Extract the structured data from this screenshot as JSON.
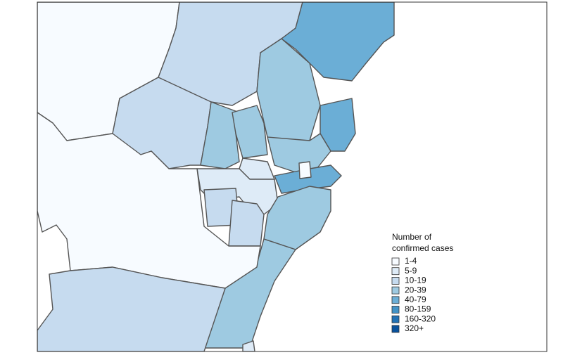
{
  "legend": {
    "title_lines": [
      "Number of",
      "confirmed cases"
    ],
    "items": [
      {
        "label": "1-4",
        "color": "#f7fbff"
      },
      {
        "label": "5-9",
        "color": "#deebf7"
      },
      {
        "label": "10-19",
        "color": "#c6dbef"
      },
      {
        "label": "20-39",
        "color": "#9ecae1"
      },
      {
        "label": "40-79",
        "color": "#6baed6"
      },
      {
        "label": "80-159",
        "color": "#4292c6"
      },
      {
        "label": "160-320",
        "color": "#2171b5"
      },
      {
        "label": "320+",
        "color": "#08519c"
      }
    ]
  }
}
